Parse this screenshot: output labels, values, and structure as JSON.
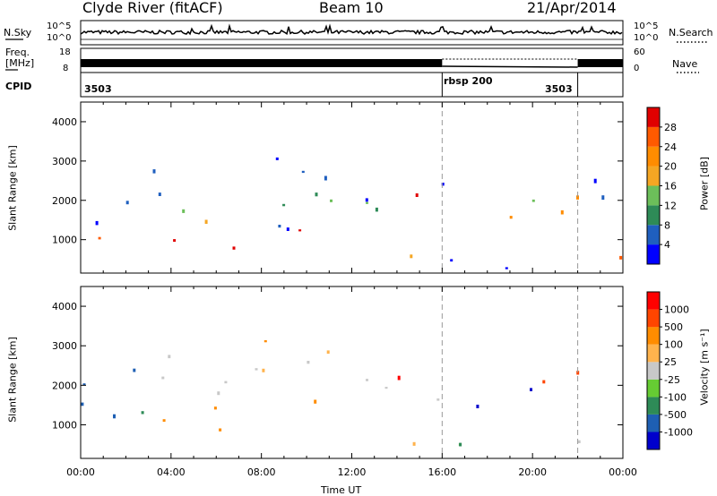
{
  "header": {
    "station": "Clyde River (fitACF)",
    "beam": "Beam 10",
    "date": "21/Apr/2014"
  },
  "strip": {
    "nsky_label": "N.Sky",
    "nsky_ticks": [
      "10^5",
      "10^0"
    ],
    "nsearch_label": "N.Search",
    "freq_label_1": "Freq.",
    "freq_label_2": "[MHz]",
    "freq_ticks": [
      "18",
      "8"
    ],
    "nave_label": "Nave",
    "nave_ticks": [
      "60",
      "0"
    ],
    "cpid_label": "CPID",
    "cpid_segments": [
      {
        "label": "3503",
        "start_hour": 0,
        "end_hour": 16
      },
      {
        "label": "rbsp 200",
        "start_hour": 16,
        "end_hour": 22
      },
      {
        "label": "3503",
        "start_hour": 22,
        "end_hour": 24
      }
    ]
  },
  "colors": {
    "power": [
      "#0000ff",
      "#1f5fbf",
      "#2e8b57",
      "#6cbf5a",
      "#f5a623",
      "#ff8c00",
      "#ff5a00",
      "#e00000"
    ],
    "velocity": [
      "#ff0000",
      "#ff4500",
      "#ff8c00",
      "#ffb34d",
      "#c8c8c8",
      "#66cc33",
      "#2e8b57",
      "#1e5fb3",
      "#0000cc"
    ]
  },
  "chart_data": [
    {
      "type": "heatmap",
      "panel": "power",
      "xlabel": "",
      "ylabel": "Slant Range [km]",
      "xlim": [
        0,
        24
      ],
      "ylim": [
        150,
        4500
      ],
      "y_ticks": [
        "1000",
        "2000",
        "3000",
        "4000"
      ],
      "colorbar_label": "Power [dB]",
      "colorbar_ticks": [
        "4",
        "8",
        "12",
        "16",
        "20",
        "24",
        "28"
      ],
      "grid": false,
      "vertical_markers_hour": [
        16,
        22
      ]
    },
    {
      "type": "heatmap",
      "panel": "velocity",
      "xlabel": "Time UT",
      "ylabel": "Slant Range [km]",
      "xlim": [
        0,
        24
      ],
      "ylim": [
        150,
        4500
      ],
      "x_ticks": [
        "00:00",
        "04:00",
        "08:00",
        "12:00",
        "16:00",
        "20:00",
        "00:00"
      ],
      "y_ticks": [
        "1000",
        "2000",
        "3000",
        "4000"
      ],
      "colorbar_label": "Velocity [m s⁻¹]",
      "colorbar_ticks": [
        "1000",
        "500",
        "100",
        "25",
        "-25",
        "-100",
        "-500",
        "-1000"
      ],
      "grid": false,
      "vertical_markers_hour": [
        16,
        22
      ]
    }
  ]
}
